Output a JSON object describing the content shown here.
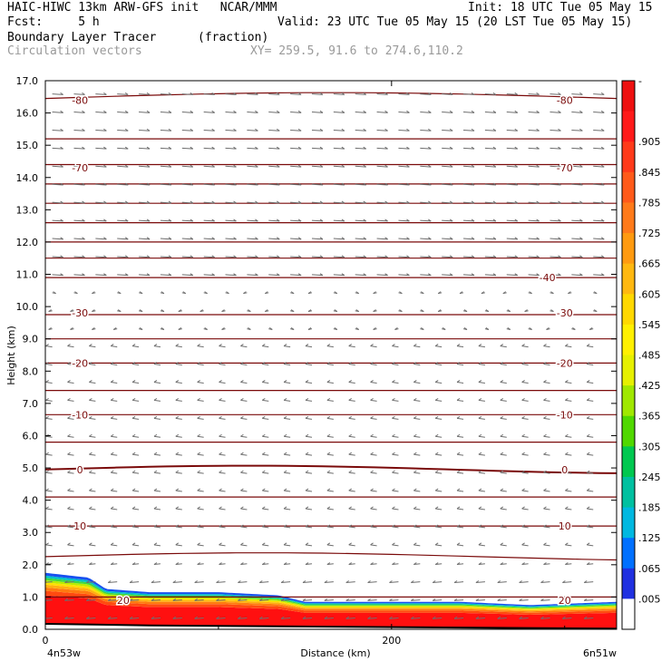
{
  "header": {
    "line1_left": "HAIC-HIWC 13km ARW-GFS init   NCAR/MMM",
    "line1_right": "Init: 18 UTC Tue 05 May 15",
    "line2_left": "Fcst:     5 h",
    "line2_right": "Valid: 23 UTC Tue 05 May 15 (20 LST Tue 05 May 15)",
    "line3_left": "Boundary Layer Tracer",
    "line3_mid": "(fraction)",
    "line4_left": "Circulation vectors",
    "line4_mid": "XY= 259.5, 91.6 to 274.6,110.2"
  },
  "chart_data": {
    "type": "heatmap",
    "xlabel": "Distance (km)",
    "ylabel": "Height (km)",
    "xlim": [
      0,
      330
    ],
    "ylim": [
      0,
      17
    ],
    "x_ticks": [
      "0",
      "200"
    ],
    "x_tick_values": [
      0,
      200
    ],
    "x_end_labels": {
      "left": "4n53w",
      "right": "6n51w"
    },
    "y_ticks": [
      "0.0",
      "1.0",
      "2.0",
      "3.0",
      "4.0",
      "5.0",
      "6.0",
      "7.0",
      "8.0",
      "9.0",
      "10.0",
      "11.0",
      "12.0",
      "13.0",
      "14.0",
      "15.0",
      "16.0",
      "17.0"
    ],
    "y_tick_values": [
      0,
      1,
      2,
      3,
      4,
      5,
      6,
      7,
      8,
      9,
      10,
      11,
      12,
      13,
      14,
      15,
      16,
      17
    ],
    "colorbar": {
      "labels": [
        "-",
        ".905",
        ".845",
        ".785",
        ".725",
        ".665",
        ".605",
        ".545",
        ".485",
        ".425",
        ".365",
        ".305",
        ".245",
        ".185",
        ".125",
        ".065",
        ".005"
      ],
      "colors": [
        "#ee1010",
        "#ff1a1a",
        "#ff3a1a",
        "#ff5a1a",
        "#ff7a1a",
        "#ff9a10",
        "#ffb810",
        "#ffd800",
        "#fff000",
        "#e6f000",
        "#a0e800",
        "#50d800",
        "#00c850",
        "#00c0a0",
        "#00b8e0",
        "#0070ff",
        "#2030e0",
        "#ffffff"
      ]
    },
    "tracer_top_km": [
      {
        "x": 0,
        "top": 1.75
      },
      {
        "x": 25,
        "top": 1.6
      },
      {
        "x": 35,
        "top": 1.25
      },
      {
        "x": 60,
        "top": 1.15
      },
      {
        "x": 100,
        "top": 1.15
      },
      {
        "x": 135,
        "top": 1.05
      },
      {
        "x": 150,
        "top": 0.85
      },
      {
        "x": 240,
        "top": 0.85
      },
      {
        "x": 280,
        "top": 0.75
      },
      {
        "x": 330,
        "top": 0.85
      }
    ],
    "temperature_contours": [
      {
        "label": "-80",
        "label_y": 16.4,
        "line_y": 16.45
      },
      {
        "label": "-70",
        "label_y": 14.3,
        "line_y": 14.4
      },
      {
        "label": "-40",
        "label_y": 10.9,
        "line_y": 10.9
      },
      {
        "label": "-30",
        "label_y": 9.8,
        "line_y": 9.75
      },
      {
        "label": "-20",
        "label_y": 8.25,
        "line_y": 8.25
      },
      {
        "label": "-10",
        "label_y": 6.65,
        "line_y": 6.65
      },
      {
        "label": "0",
        "label_y": 4.95,
        "line_y": 4.95
      },
      {
        "label": "10",
        "label_y": 3.2,
        "line_y": 3.2
      },
      {
        "label": "20",
        "label_y": 0.9,
        "line_y": 1.0
      }
    ],
    "extra_isotherm_heights_km": [
      2.25,
      4.1,
      5.8,
      7.4,
      9.0,
      11.5,
      12.0,
      12.6,
      13.2,
      13.8,
      15.2
    ],
    "wind_pattern": {
      "upper": "westerly (rightward) above ~10.5 km",
      "lower": "easterly (leftward) below ~9 km"
    }
  }
}
